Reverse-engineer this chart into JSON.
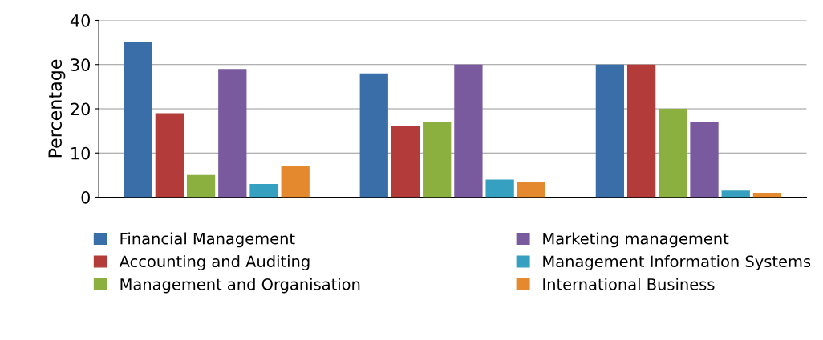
{
  "chart_data": {
    "type": "bar",
    "ylabel": "Percentage",
    "categories": [
      null,
      null,
      null
    ],
    "series": [
      {
        "name": "Financial Management",
        "color": "#3a6ea8",
        "values": [
          35,
          28,
          30
        ]
      },
      {
        "name": "Accounting and Auditing",
        "color": "#b33c3a",
        "values": [
          19,
          16,
          30
        ]
      },
      {
        "name": "Management and Organisation",
        "color": "#8cb040",
        "values": [
          5,
          17,
          20
        ]
      },
      {
        "name": "Marketing management",
        "color": "#7a5a9e",
        "values": [
          29,
          30,
          17
        ]
      },
      {
        "name": "Management Information Systems",
        "color": "#35a0bf",
        "values": [
          3,
          4,
          1.5
        ]
      },
      {
        "name": "International Business",
        "color": "#e5892e",
        "values": [
          7,
          3.5,
          1
        ]
      }
    ],
    "ylim": [
      0,
      40
    ],
    "yticks": [
      0,
      10,
      20,
      30,
      40
    ],
    "grid": "y",
    "legend": "bottom"
  }
}
